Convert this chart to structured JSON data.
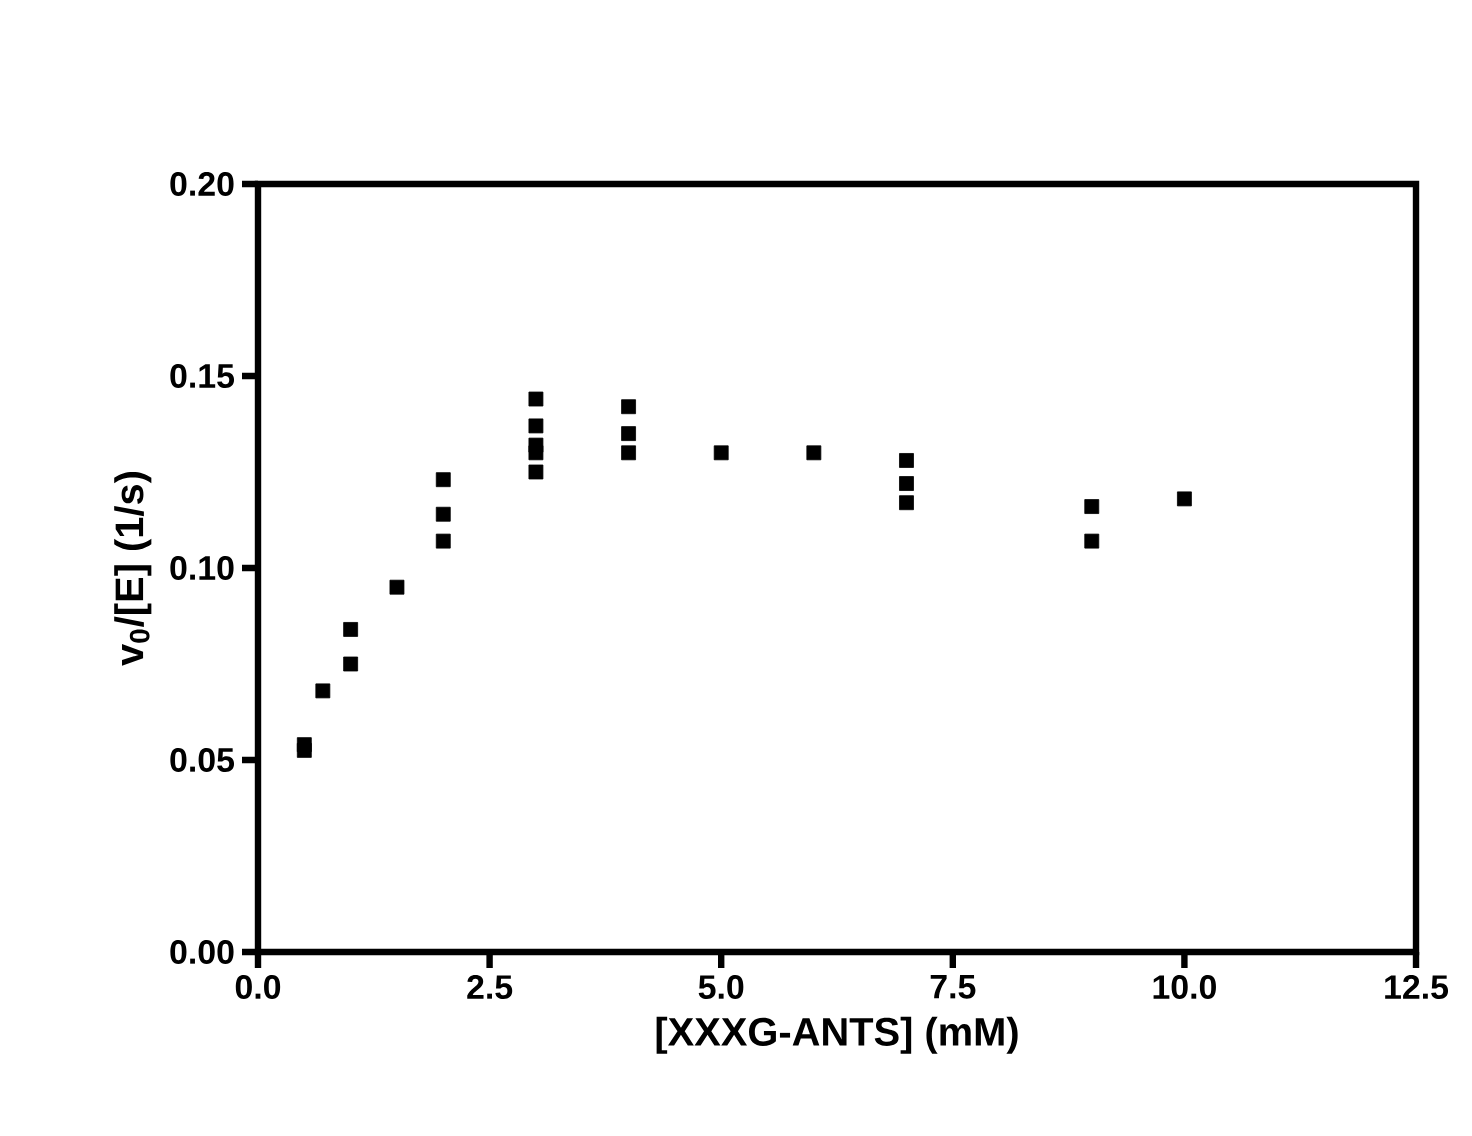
{
  "chart_data": {
    "type": "scatter",
    "xlabel": "[XXXG-ANTS] (mM)",
    "ylabel": "v$_{0}$/[E] (1/s)",
    "x": [
      0.5,
      0.5,
      0.7,
      1,
      1,
      1.5,
      2,
      2,
      2,
      3,
      3,
      3,
      3,
      3,
      4,
      4,
      4,
      5,
      6,
      7,
      7,
      7,
      9,
      9,
      10
    ],
    "values": [
      0.054,
      0.0525,
      0.068,
      0.084,
      0.075,
      0.095,
      0.123,
      0.114,
      0.107,
      0.144,
      0.137,
      0.132,
      0.13,
      0.125,
      0.142,
      0.135,
      0.13,
      0.13,
      0.13,
      0.128,
      0.122,
      0.117,
      0.116,
      0.107,
      0.118
    ],
    "color": "#000000",
    "marker": "square",
    "grid": false,
    "xlim": [
      0,
      12.5
    ],
    "ylim": [
      0,
      0.2
    ],
    "xticks": [
      {
        "value": 0,
        "label": "0.0"
      },
      {
        "value": 2.5,
        "label": "2.5"
      },
      {
        "value": 5,
        "label": "5.0"
      },
      {
        "value": 7.5,
        "label": "7.5"
      },
      {
        "value": 10,
        "label": "10.0"
      },
      {
        "value": 12.5,
        "label": "12.5"
      }
    ],
    "yticks": [
      {
        "value": 0,
        "label": "0.00"
      },
      {
        "value": 0.05,
        "label": "0.05"
      },
      {
        "value": 0.1,
        "label": "0.10"
      },
      {
        "value": 0.15,
        "label": "0.15"
      },
      {
        "value": 0.2,
        "label": "0.20"
      }
    ]
  }
}
